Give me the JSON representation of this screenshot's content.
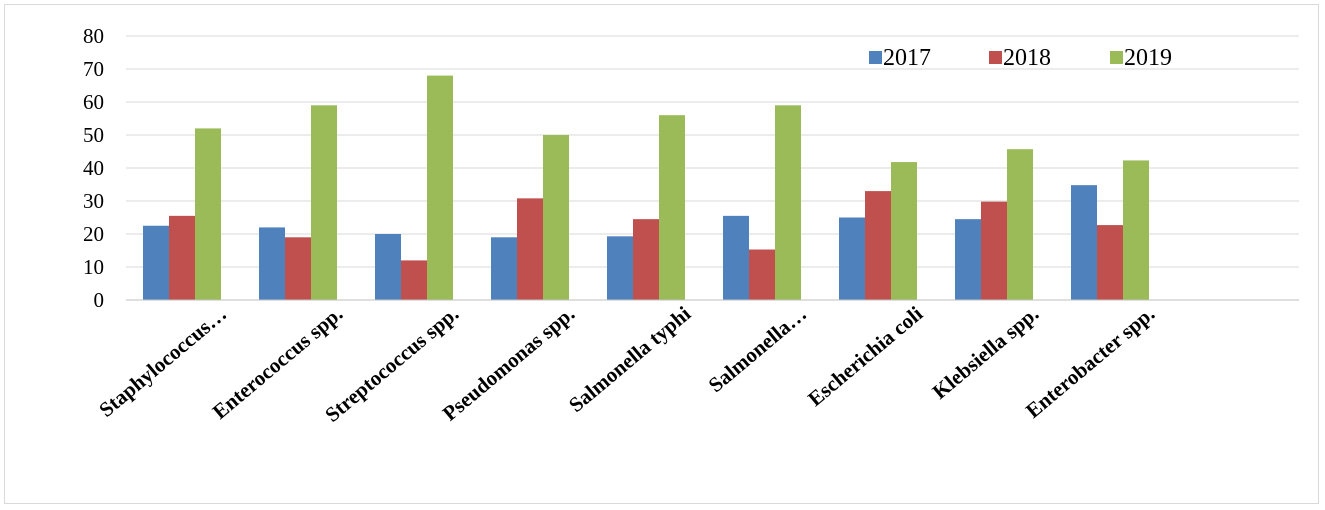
{
  "chart_data": {
    "type": "bar",
    "categories": [
      "Staphylococcus…",
      "Enterococcus spp.",
      "Streptococcus spp.",
      "Pseudomonas spp.",
      "Salmonella typhi",
      "Salmonella…",
      "Escherichia coli",
      "Klebsiella spp.",
      "Enterobacter spp."
    ],
    "series": [
      {
        "name": "2017",
        "color": "#4f81bd",
        "values": [
          22.5,
          22,
          20,
          19,
          19.3,
          25.5,
          25,
          24.5,
          34.8
        ]
      },
      {
        "name": "2018",
        "color": "#c0504d",
        "values": [
          25.5,
          19,
          12,
          30.8,
          24.5,
          15.3,
          33,
          29.8,
          22.7
        ]
      },
      {
        "name": "2019",
        "color": "#9bbb59",
        "values": [
          52,
          59,
          68,
          50,
          56,
          59,
          41.8,
          45.7,
          42.3
        ]
      }
    ],
    "ylim": [
      0,
      80
    ],
    "yticks": [
      "0",
      "10",
      "20",
      "30",
      "40",
      "50",
      "60",
      "70",
      "80"
    ],
    "grid": true,
    "legend_position": "top-right"
  }
}
